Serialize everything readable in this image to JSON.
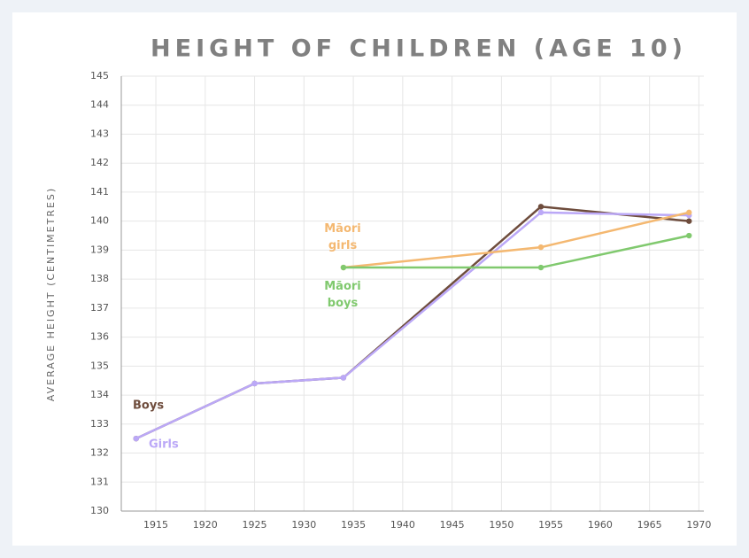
{
  "chart_data": {
    "type": "line",
    "title": "HEIGHT OF CHILDREN (AGE 10)",
    "y_label": "AVERAGE HEIGHT (CENTIMETRES)",
    "series": [
      {
        "name": "Boys",
        "color": "#6e4c3c",
        "x": [
          1913,
          1925,
          1934,
          1954,
          1969
        ],
        "values": [
          132.5,
          134.4,
          134.6,
          140.5,
          140.0
        ]
      },
      {
        "name": "Girls",
        "color": "#bba8f7",
        "x": [
          1913,
          1925,
          1934,
          1954,
          1969
        ],
        "values": [
          132.5,
          134.4,
          134.6,
          140.3,
          140.2
        ]
      },
      {
        "name": "Māori girls",
        "color": "#f4b871",
        "x": [
          1934,
          1954,
          1969
        ],
        "values": [
          138.4,
          139.1,
          140.3
        ]
      },
      {
        "name": "Māori boys",
        "color": "#80c96e",
        "x": [
          1934,
          1954,
          1969
        ],
        "values": [
          138.4,
          138.4,
          139.5
        ]
      }
    ],
    "xlim": [
      1911.5,
      1970.5
    ],
    "xticks": [
      1915,
      1920,
      1925,
      1930,
      1935,
      1940,
      1945,
      1950,
      1955,
      1960,
      1965,
      1970
    ],
    "ylim": [
      130,
      145
    ],
    "yticks": [
      130,
      131,
      132,
      133,
      134,
      135,
      136,
      137,
      138,
      139,
      140,
      141,
      142,
      143,
      144,
      145
    ],
    "grid": true
  }
}
